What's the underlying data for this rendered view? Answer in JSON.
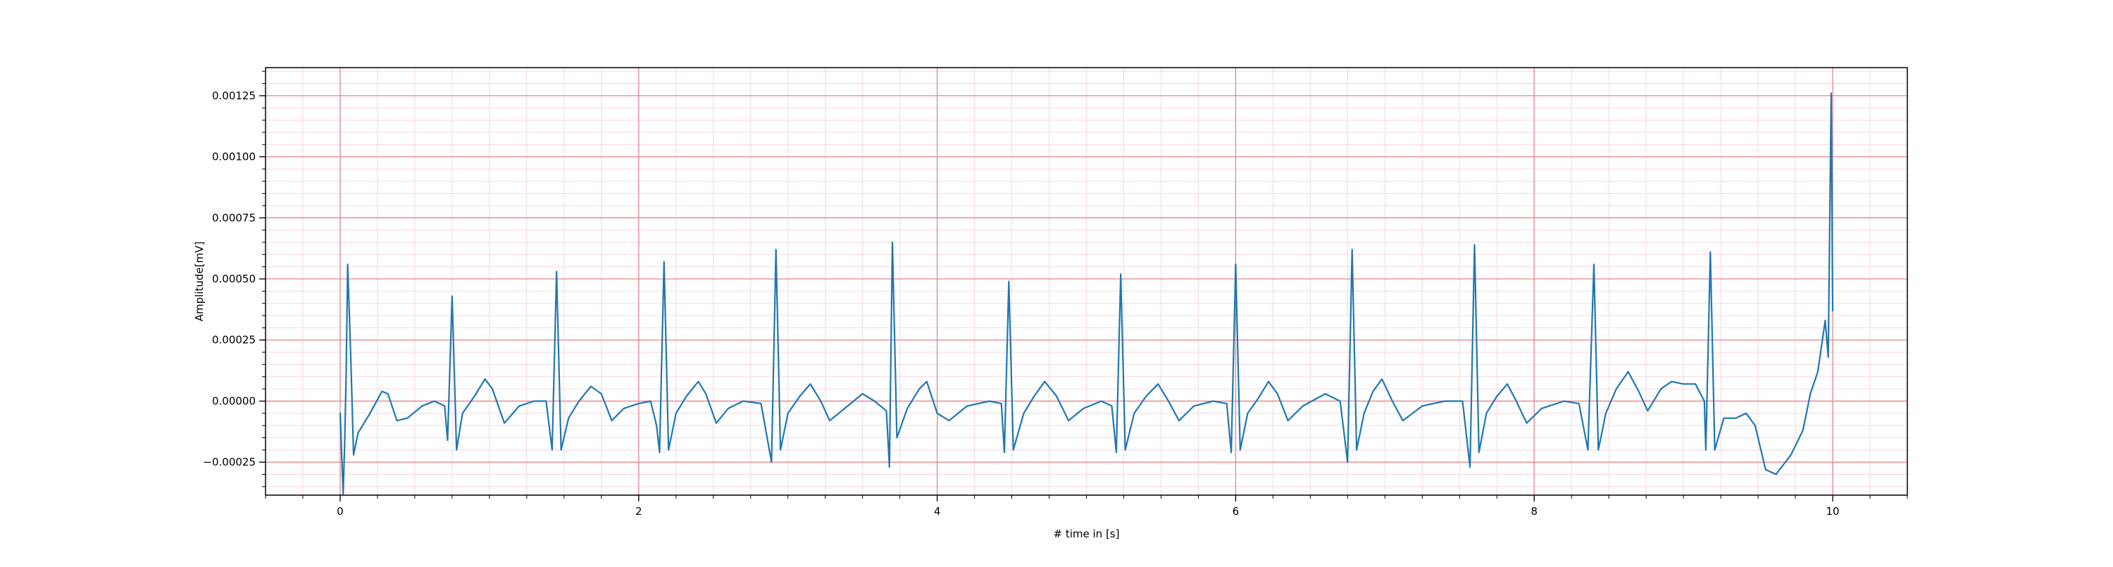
{
  "chart_data": {
    "type": "line",
    "title": "",
    "xlabel": "# time in [s]",
    "ylabel": "Amplitude[mV]",
    "xlim": [
      -0.5,
      10.5
    ],
    "ylim": [
      -0.000385,
      0.001365
    ],
    "xticks": [
      0,
      2,
      4,
      6,
      8,
      10
    ],
    "xtick_labels": [
      "0",
      "2",
      "4",
      "6",
      "8",
      "10"
    ],
    "yticks": [
      -0.00025,
      0,
      0.00025,
      0.0005,
      0.00075,
      0.001,
      0.00125
    ],
    "ytick_labels": [
      "−0.00025",
      "0.00000",
      "0.00025",
      "0.00050",
      "0.00075",
      "0.00100",
      "0.00125"
    ],
    "grid": {
      "major": true,
      "minor": true,
      "major_color": "#e8868a",
      "minor_color": "#f9d6de"
    },
    "legend": "none",
    "series": [
      {
        "color": "#1f77b4",
        "beat_times": [
          0.05,
          0.75,
          1.45,
          2.17,
          2.92,
          3.7,
          4.48,
          5.23,
          6.0,
          6.78,
          7.6,
          8.4,
          9.18
        ],
        "r_peaks": [
          0.00056,
          0.00043,
          0.00053,
          0.00057,
          0.00062,
          0.00065,
          0.00049,
          0.00052,
          0.00056,
          0.00062,
          0.00064,
          0.00056,
          0.00061
        ],
        "points": [
          [
            0.0,
            -5e-05
          ],
          [
            0.01,
            -0.00022
          ],
          [
            0.02,
            -0.00038
          ],
          [
            0.03,
            -0.00018
          ],
          [
            0.04,
            0.0001
          ],
          [
            0.05,
            0.00056
          ],
          [
            0.07,
            0.0002
          ],
          [
            0.09,
            -0.00022
          ],
          [
            0.12,
            -0.00013
          ],
          [
            0.2,
            -5e-05
          ],
          [
            0.28,
            4e-05
          ],
          [
            0.32,
            3e-05
          ],
          [
            0.38,
            -8e-05
          ],
          [
            0.45,
            -7e-05
          ],
          [
            0.55,
            -2e-05
          ],
          [
            0.63,
            0.0
          ],
          [
            0.7,
            -2e-05
          ],
          [
            0.72,
            -0.00016
          ],
          [
            0.75,
            0.00043
          ],
          [
            0.78,
            -0.0002
          ],
          [
            0.82,
            -5e-05
          ],
          [
            0.9,
            2e-05
          ],
          [
            0.97,
            9e-05
          ],
          [
            1.02,
            5e-05
          ],
          [
            1.1,
            -9e-05
          ],
          [
            1.2,
            -2e-05
          ],
          [
            1.3,
            0.0
          ],
          [
            1.38,
            -0.0
          ],
          [
            1.42,
            -0.0002
          ],
          [
            1.45,
            0.00053
          ],
          [
            1.48,
            -0.0002
          ],
          [
            1.53,
            -7e-05
          ],
          [
            1.6,
            0.0
          ],
          [
            1.68,
            6e-05
          ],
          [
            1.75,
            3e-05
          ],
          [
            1.82,
            -8e-05
          ],
          [
            1.9,
            -3e-05
          ],
          [
            2.0,
            -1e-05
          ],
          [
            2.08,
            0.0
          ],
          [
            2.12,
            -0.0001
          ],
          [
            2.14,
            -0.00021
          ],
          [
            2.17,
            0.00057
          ],
          [
            2.2,
            -0.0002
          ],
          [
            2.25,
            -5e-05
          ],
          [
            2.32,
            2e-05
          ],
          [
            2.4,
            8e-05
          ],
          [
            2.45,
            3e-05
          ],
          [
            2.52,
            -9e-05
          ],
          [
            2.6,
            -3e-05
          ],
          [
            2.7,
            0.0
          ],
          [
            2.82,
            -1e-05
          ],
          [
            2.89,
            -0.00025
          ],
          [
            2.92,
            0.00062
          ],
          [
            2.95,
            -0.0002
          ],
          [
            3.0,
            -5e-05
          ],
          [
            3.08,
            2e-05
          ],
          [
            3.15,
            7e-05
          ],
          [
            3.22,
            0.0
          ],
          [
            3.28,
            -8e-05
          ],
          [
            3.38,
            -3e-05
          ],
          [
            3.5,
            3e-05
          ],
          [
            3.58,
            0.0
          ],
          [
            3.66,
            -4e-05
          ],
          [
            3.68,
            -0.00027
          ],
          [
            3.7,
            0.00065
          ],
          [
            3.73,
            -0.00015
          ],
          [
            3.8,
            -3e-05
          ],
          [
            3.88,
            5e-05
          ],
          [
            3.93,
            8e-05
          ],
          [
            4.0,
            -5e-05
          ],
          [
            4.08,
            -8e-05
          ],
          [
            4.2,
            -2e-05
          ],
          [
            4.35,
            0.0
          ],
          [
            4.43,
            -1e-05
          ],
          [
            4.45,
            -0.00021
          ],
          [
            4.48,
            0.00049
          ],
          [
            4.51,
            -0.0002
          ],
          [
            4.58,
            -5e-05
          ],
          [
            4.65,
            2e-05
          ],
          [
            4.72,
            8e-05
          ],
          [
            4.8,
            2e-05
          ],
          [
            4.88,
            -8e-05
          ],
          [
            4.98,
            -3e-05
          ],
          [
            5.1,
            0.0
          ],
          [
            5.17,
            -2e-05
          ],
          [
            5.2,
            -0.00021
          ],
          [
            5.23,
            0.00052
          ],
          [
            5.26,
            -0.0002
          ],
          [
            5.32,
            -5e-05
          ],
          [
            5.4,
            2e-05
          ],
          [
            5.48,
            7e-05
          ],
          [
            5.55,
            0.0
          ],
          [
            5.62,
            -8e-05
          ],
          [
            5.72,
            -2e-05
          ],
          [
            5.85,
            0.0
          ],
          [
            5.94,
            -1e-05
          ],
          [
            5.97,
            -0.00021
          ],
          [
            6.0,
            0.00056
          ],
          [
            6.03,
            -0.0002
          ],
          [
            6.08,
            -5e-05
          ],
          [
            6.15,
            1e-05
          ],
          [
            6.22,
            8e-05
          ],
          [
            6.28,
            3e-05
          ],
          [
            6.35,
            -8e-05
          ],
          [
            6.45,
            -2e-05
          ],
          [
            6.6,
            3e-05
          ],
          [
            6.7,
            0.0
          ],
          [
            6.75,
            -0.00025
          ],
          [
            6.78,
            0.00062
          ],
          [
            6.81,
            -0.0002
          ],
          [
            6.86,
            -5e-05
          ],
          [
            6.92,
            4e-05
          ],
          [
            6.98,
            9e-05
          ],
          [
            7.05,
            0.0
          ],
          [
            7.12,
            -8e-05
          ],
          [
            7.25,
            -2e-05
          ],
          [
            7.4,
            0.0
          ],
          [
            7.52,
            0.0
          ],
          [
            7.57,
            -0.00027
          ],
          [
            7.6,
            0.00064
          ],
          [
            7.63,
            -0.00021
          ],
          [
            7.68,
            -5e-05
          ],
          [
            7.75,
            2e-05
          ],
          [
            7.82,
            7e-05
          ],
          [
            7.88,
            0.0
          ],
          [
            7.95,
            -9e-05
          ],
          [
            8.05,
            -3e-05
          ],
          [
            8.2,
            0.0
          ],
          [
            8.3,
            -1e-05
          ],
          [
            8.36,
            -0.0002
          ],
          [
            8.4,
            0.00056
          ],
          [
            8.43,
            -0.0002
          ],
          [
            8.48,
            -5e-05
          ],
          [
            8.55,
            5e-05
          ],
          [
            8.63,
            0.00012
          ],
          [
            8.7,
            4e-05
          ],
          [
            8.76,
            -4e-05
          ],
          [
            8.85,
            5e-05
          ],
          [
            8.92,
            8e-05
          ],
          [
            9.0,
            7e-05
          ],
          [
            9.08,
            7e-05
          ],
          [
            9.14,
            -0.0
          ],
          [
            9.15,
            -0.0002
          ],
          [
            9.18,
            0.00061
          ],
          [
            9.21,
            -0.0002
          ],
          [
            9.27,
            -7e-05
          ],
          [
            9.35,
            -7e-05
          ],
          [
            9.42,
            -5e-05
          ],
          [
            9.48,
            -0.0001
          ],
          [
            9.55,
            -0.00028
          ],
          [
            9.62,
            -0.0003
          ],
          [
            9.72,
            -0.00022
          ],
          [
            9.8,
            -0.00012
          ],
          [
            9.85,
            3e-05
          ],
          [
            9.9,
            0.00012
          ],
          [
            9.95,
            0.00033
          ],
          [
            9.97,
            0.00018
          ],
          [
            9.99,
            0.00126
          ],
          [
            10.0,
            0.00037
          ]
        ]
      }
    ]
  }
}
